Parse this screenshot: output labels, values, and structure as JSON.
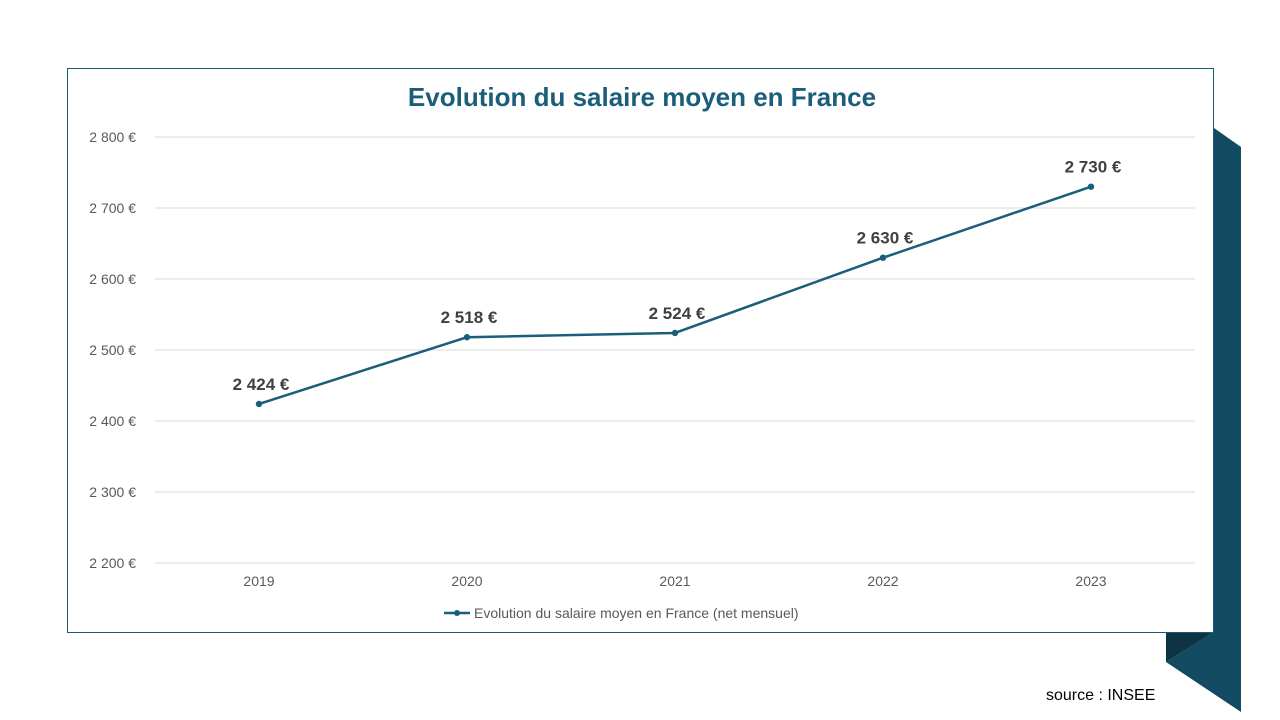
{
  "colors": {
    "line": "#1a5f7a",
    "accent_dark": "#124a61",
    "accent_shadow": "#0d3345",
    "grid": "#d9d9d9",
    "title": "#1b5e7a"
  },
  "chart_data": {
    "type": "line",
    "title": "Evolution du salaire moyen en France",
    "categories": [
      "2019",
      "2020",
      "2021",
      "2022",
      "2023"
    ],
    "series": [
      {
        "name": "Evolution du salaire moyen en France (net mensuel)",
        "values": [
          2424,
          2518,
          2524,
          2630,
          2730
        ],
        "labels": [
          "2 424 €",
          "2 518 €",
          "2 524 €",
          "2 630 €",
          "2 730 €"
        ]
      }
    ],
    "ylim": [
      2200,
      2800
    ],
    "yticks": [
      2200,
      2300,
      2400,
      2500,
      2600,
      2700,
      2800
    ],
    "ytick_labels": [
      "2 200 €",
      "2 300 €",
      "2 400 €",
      "2 500 €",
      "2 600 €",
      "2 700 €",
      "2 800 €"
    ],
    "grid": true,
    "legend": "bottom",
    "xlabel": "",
    "ylabel": ""
  },
  "source": "source : INSEE"
}
